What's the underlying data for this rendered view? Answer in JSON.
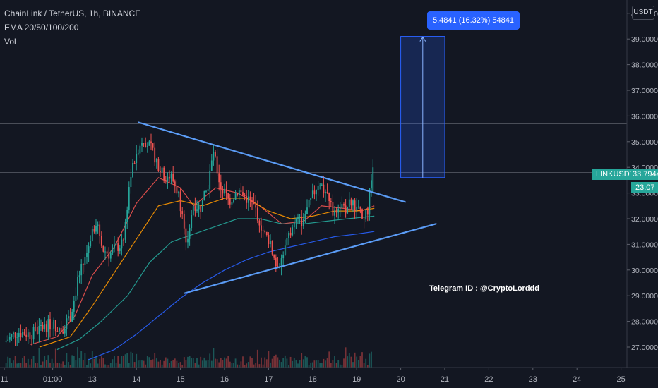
{
  "header": {
    "symbol_line": "ChainLink / TetherUS, 1h, BINANCE",
    "indicator_line": "EMA 20/50/100/200",
    "volume_line": "Vol"
  },
  "currency_button": "USDT",
  "measure_label": "5.4841 (16.32%) 54841",
  "annotation": "Telegram ID : @CryptoLorddd",
  "price_label": {
    "symbol": "LINKUSDT",
    "price": "33.7944",
    "countdown": "23:07"
  },
  "colors": {
    "background": "#131722",
    "up": "#26a69a",
    "down": "#ef5350",
    "trendline": "#5b9cf6",
    "ema20": "#ef5350",
    "ema50": "#ff9800",
    "ema100": "#26a69a",
    "ema200": "#2962ff",
    "measure_box": "#2962ff"
  },
  "chart_data": {
    "type": "candlestick",
    "title": "ChainLink / TetherUS, 1h, BINANCE",
    "y_axis": {
      "range": [
        26.5,
        41
      ],
      "tick_labels": [
        "27.0000",
        "28.0000",
        "29.0000",
        "30.0000",
        "31.0000",
        "32.0000",
        "33.0000",
        "34.0000",
        "35.0000",
        "36.0000",
        "37.0000",
        "38.0000",
        "39.0000",
        "40.0000"
      ]
    },
    "x_axis": {
      "range_days": [
        11,
        25
      ],
      "tick_labels": [
        "11",
        "01:00",
        "13",
        "14",
        "15",
        "16",
        "17",
        "18",
        "19",
        "20",
        "21",
        "22",
        "23",
        "24",
        "25"
      ],
      "tick_days": [
        11,
        12.1,
        13,
        14,
        15,
        16,
        17,
        18,
        19,
        20,
        21,
        22,
        23,
        24,
        25
      ]
    },
    "grid": false,
    "last_price": 33.7944,
    "horizontal_levels": [
      35.7,
      33.8
    ],
    "price_path": [
      [
        11.0,
        27.2
      ],
      [
        11.3,
        27.6
      ],
      [
        11.6,
        27.5
      ],
      [
        11.9,
        27.8
      ],
      [
        12.1,
        27.9
      ],
      [
        12.3,
        27.7
      ],
      [
        12.5,
        28.2
      ],
      [
        12.7,
        29.8
      ],
      [
        12.85,
        30.5
      ],
      [
        13.0,
        31.6
      ],
      [
        13.1,
        31.9
      ],
      [
        13.25,
        30.8
      ],
      [
        13.4,
        30.6
      ],
      [
        13.55,
        30.9
      ],
      [
        13.7,
        31.0
      ],
      [
        13.85,
        33.5
      ],
      [
        14.0,
        34.6
      ],
      [
        14.15,
        35.2
      ],
      [
        14.3,
        34.8
      ],
      [
        14.45,
        34.3
      ],
      [
        14.6,
        33.7
      ],
      [
        14.8,
        33.6
      ],
      [
        14.95,
        33.0
      ],
      [
        15.05,
        32.1
      ],
      [
        15.12,
        30.8
      ],
      [
        15.3,
        32.6
      ],
      [
        15.45,
        32.4
      ],
      [
        15.6,
        33.1
      ],
      [
        15.75,
        34.6
      ],
      [
        15.9,
        33.3
      ],
      [
        16.1,
        32.7
      ],
      [
        16.3,
        33.1
      ],
      [
        16.5,
        32.8
      ],
      [
        16.7,
        32.4
      ],
      [
        16.9,
        31.4
      ],
      [
        17.05,
        31.1
      ],
      [
        17.15,
        30.2
      ],
      [
        17.3,
        30.4
      ],
      [
        17.45,
        31.2
      ],
      [
        17.6,
        31.9
      ],
      [
        17.75,
        31.9
      ],
      [
        17.9,
        32.4
      ],
      [
        18.05,
        33.1
      ],
      [
        18.15,
        33.5
      ],
      [
        18.3,
        32.9
      ],
      [
        18.45,
        32.3
      ],
      [
        18.6,
        32.6
      ],
      [
        18.75,
        32.4
      ],
      [
        18.9,
        32.7
      ],
      [
        19.05,
        32.3
      ],
      [
        19.15,
        31.8
      ],
      [
        19.25,
        32.4
      ],
      [
        19.35,
        33.8
      ]
    ],
    "ema_series": [
      {
        "name": "EMA 20",
        "points": [
          [
            11.6,
            27.1
          ],
          [
            12.2,
            27.4
          ],
          [
            12.6,
            28.2
          ],
          [
            13.0,
            29.8
          ],
          [
            13.5,
            30.9
          ],
          [
            14.0,
            32.6
          ],
          [
            14.5,
            33.6
          ],
          [
            15.0,
            33.2
          ],
          [
            15.3,
            32.5
          ],
          [
            15.8,
            33.2
          ],
          [
            16.3,
            33.0
          ],
          [
            16.8,
            32.5
          ],
          [
            17.3,
            31.8
          ],
          [
            17.8,
            31.9
          ],
          [
            18.2,
            32.5
          ],
          [
            18.7,
            32.4
          ],
          [
            19.1,
            32.3
          ],
          [
            19.4,
            32.5
          ]
        ]
      },
      {
        "name": "EMA 50",
        "points": [
          [
            11.8,
            27.0
          ],
          [
            12.5,
            27.4
          ],
          [
            13.0,
            28.6
          ],
          [
            13.5,
            29.9
          ],
          [
            14.0,
            31.2
          ],
          [
            14.5,
            32.5
          ],
          [
            15.0,
            32.7
          ],
          [
            15.5,
            32.5
          ],
          [
            16.0,
            32.8
          ],
          [
            16.5,
            32.8
          ],
          [
            17.0,
            32.3
          ],
          [
            17.5,
            32.0
          ],
          [
            18.0,
            32.1
          ],
          [
            18.5,
            32.3
          ],
          [
            19.0,
            32.3
          ],
          [
            19.4,
            32.4
          ]
        ]
      },
      {
        "name": "EMA 100",
        "points": [
          [
            12.2,
            26.9
          ],
          [
            12.7,
            27.3
          ],
          [
            13.2,
            28.0
          ],
          [
            13.8,
            29.0
          ],
          [
            14.3,
            30.3
          ],
          [
            14.8,
            31.1
          ],
          [
            15.3,
            31.4
          ],
          [
            15.8,
            31.7
          ],
          [
            16.3,
            32.0
          ],
          [
            16.8,
            32.0
          ],
          [
            17.3,
            31.8
          ],
          [
            17.8,
            31.8
          ],
          [
            18.3,
            31.9
          ],
          [
            18.8,
            32.0
          ],
          [
            19.4,
            32.1
          ]
        ]
      },
      {
        "name": "EMA 200",
        "points": [
          [
            12.9,
            26.5
          ],
          [
            13.5,
            26.9
          ],
          [
            14.0,
            27.5
          ],
          [
            14.5,
            28.2
          ],
          [
            15.0,
            28.9
          ],
          [
            15.5,
            29.5
          ],
          [
            16.0,
            30.0
          ],
          [
            16.5,
            30.4
          ],
          [
            17.0,
            30.7
          ],
          [
            17.5,
            30.9
          ],
          [
            18.0,
            31.1
          ],
          [
            18.5,
            31.3
          ],
          [
            19.0,
            31.4
          ],
          [
            19.4,
            31.5
          ]
        ]
      }
    ],
    "trendlines": [
      {
        "from": [
          14.05,
          35.75
        ],
        "to": [
          20.1,
          32.65
        ]
      },
      {
        "from": [
          15.1,
          29.1
        ],
        "to": [
          20.8,
          31.8
        ]
      }
    ],
    "measure_box": {
      "x_days": [
        20.0,
        21.0
      ],
      "y_values": [
        33.6,
        39.1
      ]
    }
  }
}
